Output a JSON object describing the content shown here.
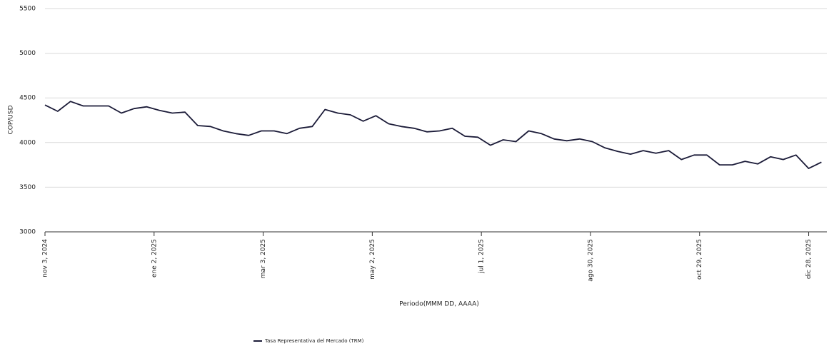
{
  "chart_data": {
    "type": "line",
    "x_label": "Periodo(MMM DD, AAAA)",
    "y_label": "COP/USD",
    "x": [
      "2024-11-03",
      "2024-11-10",
      "2024-11-17",
      "2024-11-24",
      "2024-12-01",
      "2024-12-08",
      "2024-12-15",
      "2024-12-22",
      "2024-12-29",
      "2025-01-05",
      "2025-01-12",
      "2025-01-19",
      "2025-01-26",
      "2025-02-02",
      "2025-02-09",
      "2025-02-16",
      "2025-02-23",
      "2025-03-02",
      "2025-03-09",
      "2025-03-16",
      "2025-03-23",
      "2025-03-30",
      "2025-04-06",
      "2025-04-13",
      "2025-04-20",
      "2025-04-27",
      "2025-05-04",
      "2025-05-11",
      "2025-05-18",
      "2025-05-25",
      "2025-06-01",
      "2025-06-08",
      "2025-06-15",
      "2025-06-22",
      "2025-06-29",
      "2025-07-06",
      "2025-07-13",
      "2025-07-20",
      "2025-07-27",
      "2025-08-03",
      "2025-08-10",
      "2025-08-17",
      "2025-08-24",
      "2025-08-31",
      "2025-09-07",
      "2025-09-14",
      "2025-09-21",
      "2025-09-28",
      "2025-10-05",
      "2025-10-12",
      "2025-10-19",
      "2025-10-26",
      "2025-11-02",
      "2025-11-09",
      "2025-11-16",
      "2025-11-23",
      "2025-11-30",
      "2025-12-07",
      "2025-12-14",
      "2025-12-21",
      "2025-12-28",
      "2026-01-04"
    ],
    "series": [
      {
        "name": "Tasa Representativa del Mercado (TRM)",
        "color": "#1b1b38",
        "values": [
          4420,
          4350,
          4460,
          4410,
          4410,
          4410,
          4330,
          4380,
          4400,
          4360,
          4330,
          4340,
          4190,
          4180,
          4130,
          4100,
          4080,
          4130,
          4130,
          4100,
          4160,
          4180,
          4370,
          4330,
          4310,
          4240,
          4300,
          4210,
          4180,
          4160,
          4120,
          4130,
          4160,
          4070,
          4060,
          3970,
          4030,
          4010,
          4130,
          4100,
          4040,
          4020,
          4040,
          4010,
          3940,
          3900,
          3870,
          3910,
          3880,
          3910,
          3810,
          3860,
          3860,
          3750,
          3750,
          3790,
          3760,
          3840,
          3810,
          3860,
          3710,
          3780
        ]
      }
    ],
    "xlim": [
      "2024-11-03",
      "2026-01-07"
    ],
    "xticks": [
      {
        "value": "2024-11-03",
        "label": "nov 3, 2024"
      },
      {
        "value": "2025-01-02",
        "label": "ene 2, 2025"
      },
      {
        "value": "2025-03-03",
        "label": "mar 3, 2025"
      },
      {
        "value": "2025-05-02",
        "label": "may 2, 2025"
      },
      {
        "value": "2025-07-01",
        "label": "jul 1, 2025"
      },
      {
        "value": "2025-08-30",
        "label": "ago 30, 2025"
      },
      {
        "value": "2025-10-29",
        "label": "oct 29, 2025"
      },
      {
        "value": "2025-12-28",
        "label": "dic 28, 2025"
      }
    ],
    "ylim": [
      3000,
      5500
    ],
    "yticks": [
      3000,
      3500,
      4000,
      4500,
      5000,
      5500
    ],
    "grid": true
  }
}
